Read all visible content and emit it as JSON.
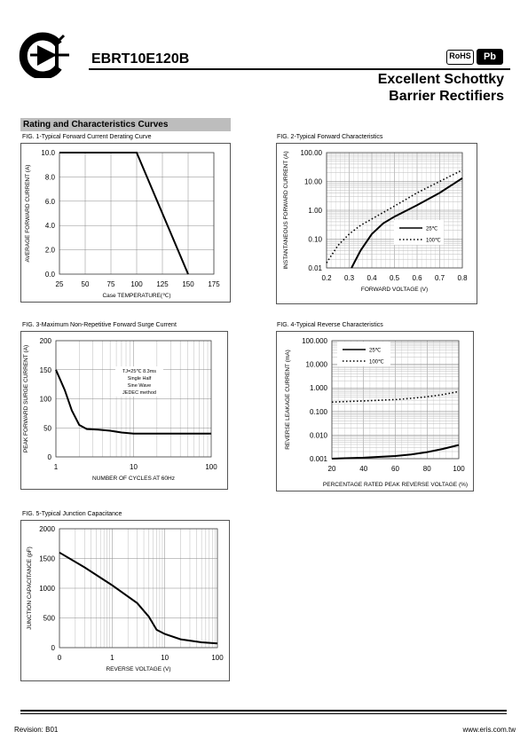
{
  "header": {
    "part_number": "EBRT10E120B",
    "rohs_label": "RoHS",
    "pb_label": "Pb",
    "title_line1": "Excellent Schottky",
    "title_line2": "Barrier Rectifiers"
  },
  "section_title": "Rating and Characteristics Curves",
  "figures": {
    "fig1_caption": "FIG. 1-Typical Forward Current Derating Curve",
    "fig2_caption": "FIG. 2-Typical Forward Characteristics",
    "fig3_caption": "FIG. 3-Maximum Non-Repetitive Forward Surge Current",
    "fig4_caption": "FIG. 4-Typical Reverse Characteristics",
    "fig5_caption": "FIG. 5-Typical Junction Capacitance"
  },
  "chart_data": [
    {
      "type": "line",
      "xlabel": "Case TEMPERATURE(℃)",
      "ylabel": "AVERAGE FORWARD CURRENT (A)",
      "xlim": [
        25,
        175
      ],
      "ylim": [
        0,
        10
      ],
      "xticks": [
        "25",
        "50",
        "75",
        "100",
        "125",
        "150",
        "175"
      ],
      "yticks": [
        "0.0",
        "2.0",
        "4.0",
        "6.0",
        "8.0",
        "10.0"
      ],
      "grid": true,
      "series": [
        {
          "x": [
            25,
            100,
            150
          ],
          "y": [
            10,
            10,
            0
          ]
        }
      ]
    },
    {
      "type": "line",
      "xlabel": "FORWARD VOLTAGE (V)",
      "ylabel": "INSTANTANEOUS FORWARD CURRENT (A)",
      "xlim": [
        0.2,
        0.8
      ],
      "ylim": [
        0.01,
        100
      ],
      "ylog": true,
      "xticks": [
        "0.2",
        "0.3",
        "0.4",
        "0.5",
        "0.6",
        "0.7",
        "0.8"
      ],
      "yticks": [
        "0.01",
        "0.10",
        "1.00",
        "10.00",
        "100.00"
      ],
      "legend": "right",
      "series": [
        {
          "name": "25℃",
          "style": "solid",
          "x": [
            0.31,
            0.35,
            0.4,
            0.45,
            0.5,
            0.6,
            0.7,
            0.8
          ],
          "y": [
            0.01,
            0.04,
            0.15,
            0.35,
            0.6,
            1.5,
            4,
            13
          ]
        },
        {
          "name": "100℃",
          "style": "dotted",
          "x": [
            0.2,
            0.25,
            0.3,
            0.35,
            0.4,
            0.5,
            0.6,
            0.7,
            0.8
          ],
          "y": [
            0.015,
            0.06,
            0.15,
            0.3,
            0.5,
            1.4,
            4,
            10,
            25
          ]
        }
      ]
    },
    {
      "type": "line",
      "xlabel": "NUMBER OF CYCLES AT 60Hz",
      "ylabel": "PEAK FORWARD SURGE CURRENT (A)",
      "xlim": [
        1,
        100
      ],
      "ylim": [
        0,
        200
      ],
      "xlog": true,
      "xticks": [
        "1",
        "10",
        "100"
      ],
      "yticks": [
        "0",
        "50",
        "100",
        "150",
        "200"
      ],
      "annotation": [
        "TJ=25℃  8.3ms",
        "Single Half",
        "Sine Wave",
        "JEDEC method"
      ],
      "series": [
        {
          "x": [
            1,
            1.3,
            1.6,
            2,
            2.5,
            3.5,
            5,
            7,
            10,
            20,
            50,
            100
          ],
          "y": [
            150,
            115,
            80,
            55,
            48,
            47,
            45,
            42,
            40,
            40,
            40,
            40
          ]
        }
      ]
    },
    {
      "type": "line",
      "xlabel": "PERCENTAGE RATED PEAK REVERSE VOLTAGE (%)",
      "ylabel": "REVERSE LEAKAGE CURRENT (mA)",
      "xlim": [
        20,
        100
      ],
      "ylim": [
        0.001,
        100
      ],
      "ylog": true,
      "xticks": [
        "20",
        "40",
        "60",
        "80",
        "100"
      ],
      "yticks": [
        "0.001",
        "0.010",
        "0.100",
        "1.000",
        "10.000",
        "100.000"
      ],
      "legend": "top-left",
      "series": [
        {
          "name": "25℃",
          "style": "solid",
          "x": [
            20,
            40,
            60,
            70,
            80,
            90,
            100
          ],
          "y": [
            0.001,
            0.0011,
            0.0013,
            0.0015,
            0.0019,
            0.0026,
            0.0038
          ]
        },
        {
          "name": "100℃",
          "style": "dotted",
          "x": [
            20,
            40,
            60,
            70,
            80,
            90,
            100
          ],
          "y": [
            0.25,
            0.28,
            0.32,
            0.36,
            0.42,
            0.52,
            0.7
          ]
        }
      ]
    },
    {
      "type": "line",
      "xlabel": "REVERSE VOLTAGE (V)",
      "ylabel": "JUNCTION CAPACITANCE (pF)",
      "xlim": [
        0.1,
        100
      ],
      "ylim": [
        0,
        2000
      ],
      "xlog": true,
      "xticks": [
        "0",
        "1",
        "10",
        "100"
      ],
      "yticks": [
        "0",
        "500",
        "1000",
        "1500",
        "2000"
      ],
      "series": [
        {
          "x": [
            0.1,
            0.3,
            1,
            3,
            5,
            7,
            10,
            20,
            50,
            100
          ],
          "y": [
            1600,
            1350,
            1050,
            750,
            520,
            300,
            230,
            140,
            90,
            70
          ]
        }
      ]
    }
  ],
  "footer": {
    "revision": "Revision: B01",
    "website": "www.eris.com.tw"
  }
}
